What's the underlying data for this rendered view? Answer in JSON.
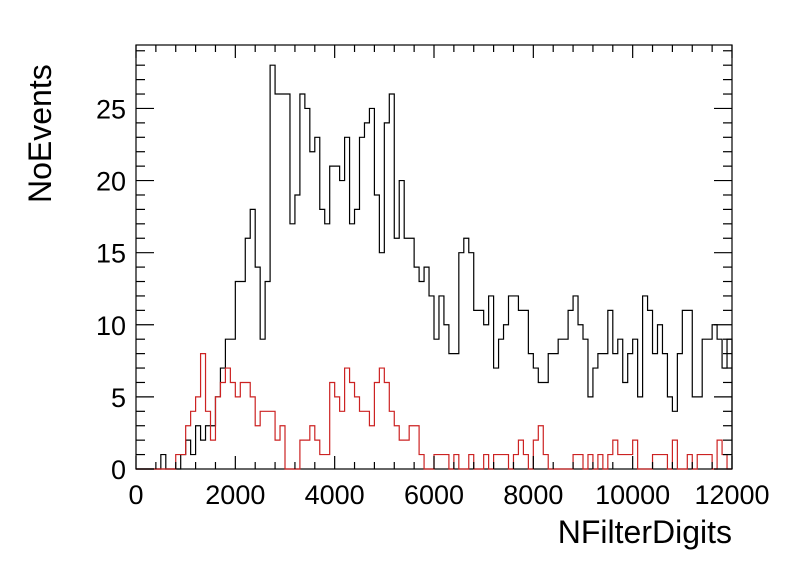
{
  "chart_data": {
    "type": "histogram",
    "title": "",
    "xlabel": "NFilterDigits",
    "ylabel": "NoEvents",
    "xlim": [
      0,
      12000
    ],
    "ylim": [
      0,
      29.4
    ],
    "bin_width": 100,
    "x_ticks": [
      0,
      2000,
      4000,
      6000,
      8000,
      10000,
      12000
    ],
    "y_ticks": [
      0,
      5,
      10,
      15,
      20,
      25
    ],
    "grid": false,
    "legend": "none",
    "series": [
      {
        "color": "#000000",
        "values": [
          0,
          0,
          0,
          0,
          0,
          1,
          0,
          0,
          0,
          1,
          2,
          1,
          3,
          2,
          3,
          3,
          5,
          7,
          9,
          9,
          13,
          13,
          16,
          18,
          14,
          9,
          13,
          28,
          26,
          26,
          26,
          17,
          19,
          26,
          25,
          22,
          23,
          18,
          17,
          21,
          21,
          20,
          23,
          17,
          18,
          23,
          24,
          25,
          19,
          15,
          24,
          26,
          16,
          20,
          16,
          16,
          14,
          13,
          14,
          12,
          9,
          12,
          10,
          8,
          8,
          15,
          16,
          15,
          11,
          11,
          10,
          12,
          7,
          9,
          10,
          12,
          12,
          11,
          11,
          8,
          7,
          6,
          6,
          8,
          8,
          9,
          9,
          11,
          12,
          10,
          9,
          5,
          7,
          8,
          8,
          11,
          8,
          9,
          6,
          8,
          9,
          5,
          12,
          11,
          8,
          10,
          8,
          5,
          4,
          8,
          11,
          11,
          5,
          5,
          9,
          9,
          10,
          9,
          7,
          9
        ]
      },
      {
        "color": "#cc2222",
        "values": [
          0,
          0,
          0,
          0,
          0,
          0,
          0,
          0,
          1,
          1,
          3,
          4,
          5,
          8,
          4,
          2,
          5,
          6,
          7,
          6,
          5,
          6,
          6,
          5,
          3,
          4,
          4,
          4,
          2,
          3,
          0,
          0,
          0,
          2,
          2,
          3,
          2,
          1,
          1,
          6,
          5,
          4,
          7,
          6,
          5,
          4,
          4,
          3,
          6,
          7,
          6,
          4,
          3,
          2,
          2,
          3,
          3,
          1,
          0,
          0,
          1,
          1,
          1,
          0,
          1,
          0,
          0,
          1,
          0,
          0,
          1,
          0,
          1,
          1,
          1,
          0,
          1,
          2,
          1,
          0,
          2,
          3,
          1,
          0,
          0,
          0,
          0,
          0,
          1,
          1,
          0,
          1,
          0,
          1,
          0,
          1,
          2,
          1,
          1,
          1,
          2,
          0,
          0,
          0,
          1,
          1,
          1,
          0,
          2,
          0,
          0,
          1,
          0,
          1,
          1,
          1,
          0,
          2,
          1,
          0
        ]
      }
    ]
  }
}
